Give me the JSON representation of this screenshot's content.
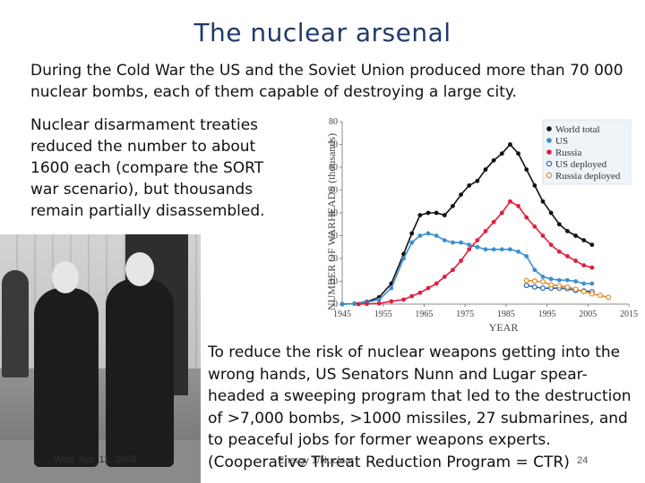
{
  "slide": {
    "title": "The nuclear arsenal",
    "paragraph1": "During the Cold War the US and the Soviet Union produced more than 70 000 nuclear bombs, each of them capable of destroying a large city.",
    "paragraph2": "Nuclear disarmament treaties reduced the number to about 1600 each (compare the SORT war scenario), but thousands remain partially disassembled.",
    "paragraph3": "To reduce the risk of nuclear weapons getting into the wrong hands, US Senators Nunn and Lugar spear-headed a sweeping program that led to the destruction of >7,000 bombs, >1000 missiles, 27 submarines, and to peaceful jobs for former weapons experts. (Cooperative Threat Reduction Program = CTR)",
    "date": "Wed, Apr. 11, 2006",
    "footer": "Energy 1/Nuclear",
    "page_number": "24"
  },
  "chart_data": {
    "type": "line",
    "ylabel": "NUMBER OF WARHEADS (thousands)",
    "xlabel": "YEAR",
    "xlim": [
      1945,
      2015
    ],
    "ylim": [
      0,
      80
    ],
    "x_ticks": [
      1945,
      1955,
      1965,
      1975,
      1985,
      1995,
      2005,
      2015
    ],
    "y_ticks": [
      0,
      10,
      20,
      30,
      40,
      50,
      60,
      70,
      80
    ],
    "legend_position": "top-right",
    "series": [
      {
        "name": "World total",
        "color": "#111111",
        "marker": "filled",
        "x": [
          1945,
          1948,
          1951,
          1954,
          1957,
          1960,
          1962,
          1964,
          1966,
          1968,
          1970,
          1972,
          1974,
          1976,
          1978,
          1980,
          1982,
          1984,
          1986,
          1988,
          1990,
          1992,
          1994,
          1996,
          1998,
          2000,
          2002,
          2004,
          2006
        ],
        "y": [
          0,
          0.2,
          1,
          3,
          9,
          22,
          31,
          39,
          40,
          40,
          39,
          43,
          48,
          52,
          54,
          59,
          63,
          66,
          70,
          66,
          59,
          52,
          45,
          40,
          35,
          32,
          30,
          28,
          26
        ]
      },
      {
        "name": "US",
        "color": "#3b8fd0",
        "marker": "filled",
        "x": [
          1945,
          1948,
          1951,
          1954,
          1957,
          1960,
          1962,
          1964,
          1966,
          1968,
          1970,
          1972,
          1974,
          1976,
          1978,
          1980,
          1982,
          1984,
          1986,
          1988,
          1990,
          1992,
          1994,
          1996,
          1998,
          2000,
          2002,
          2004,
          2006
        ],
        "y": [
          0,
          0.1,
          0.8,
          2,
          7,
          20,
          27,
          30,
          31,
          30,
          28,
          27,
          27,
          26,
          25,
          24,
          24,
          24,
          24,
          23,
          21,
          15,
          12,
          11,
          10.5,
          10.5,
          10,
          9,
          9
        ]
      },
      {
        "name": "Russia",
        "color": "#e01f3d",
        "marker": "filled",
        "x": [
          1949,
          1951,
          1954,
          1957,
          1960,
          1962,
          1964,
          1966,
          1968,
          1970,
          1972,
          1974,
          1976,
          1978,
          1980,
          1982,
          1984,
          1986,
          1988,
          1990,
          1992,
          1994,
          1996,
          1998,
          2000,
          2002,
          2004,
          2006
        ],
        "y": [
          0,
          0.1,
          0.3,
          1.2,
          2,
          3.5,
          5,
          7,
          9,
          12,
          15,
          19,
          24,
          28,
          32,
          36,
          40,
          45,
          43,
          38,
          34,
          30,
          26,
          23,
          21,
          19,
          17,
          16
        ]
      },
      {
        "name": "US deployed",
        "color": "#2f63a8",
        "marker": "open",
        "x": [
          1990,
          1992,
          1994,
          1996,
          1998,
          2000,
          2002,
          2004,
          2006
        ],
        "y": [
          8.2,
          7.5,
          7,
          7,
          7,
          6.8,
          6,
          5.8,
          5.5
        ]
      },
      {
        "name": "Russia deployed",
        "color": "#e08a2a",
        "marker": "open",
        "x": [
          1990,
          1992,
          1994,
          1996,
          1998,
          2000,
          2002,
          2004,
          2006,
          2008,
          2010
        ],
        "y": [
          10.3,
          10.1,
          9.8,
          8.5,
          8,
          7.5,
          6.5,
          5.5,
          4.5,
          3.8,
          3
        ]
      }
    ]
  }
}
